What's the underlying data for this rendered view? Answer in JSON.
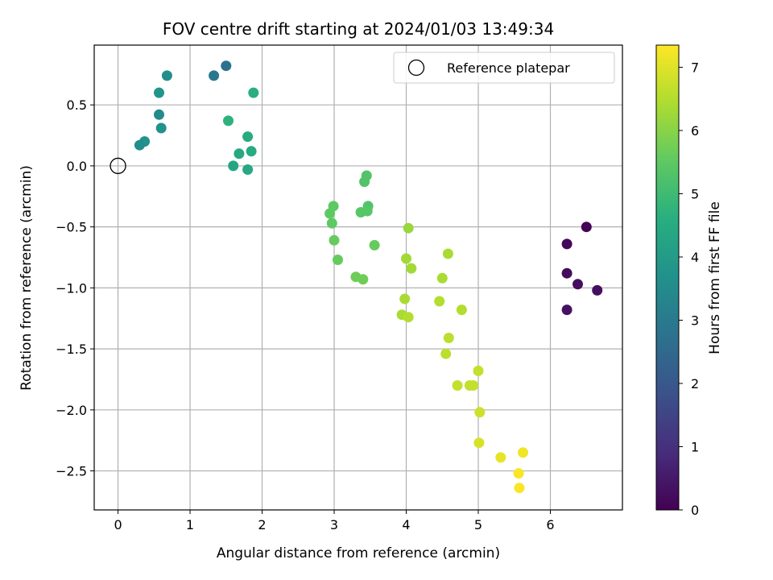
{
  "chart_data": {
    "type": "scatter",
    "title": "FOV centre drift starting at 2024/01/03 13:49:34",
    "xlabel": "Angular distance from reference (arcmin)",
    "ylabel": "Rotation from reference (arcmin)",
    "xlim": [
      -0.33,
      7.0
    ],
    "ylim": [
      -2.82,
      0.99
    ],
    "xticks": [
      0,
      1,
      2,
      3,
      4,
      5,
      6
    ],
    "yticks": [
      -2.5,
      -2.0,
      -1.5,
      -1.0,
      -0.5,
      0.0,
      0.5
    ],
    "xtick_labels": [
      "0",
      "1",
      "2",
      "3",
      "4",
      "5",
      "6"
    ],
    "ytick_labels": [
      "−2.5",
      "−2.0",
      "−1.5",
      "−1.0",
      "−0.5",
      "0.0",
      "0.5"
    ],
    "grid": true,
    "colormap": "viridis",
    "colorbar": {
      "label": "Hours from first FF file",
      "range": [
        0,
        7.35
      ],
      "ticks": [
        0,
        1,
        2,
        3,
        4,
        5,
        6,
        7
      ],
      "tick_labels": [
        "0",
        "1",
        "2",
        "3",
        "4",
        "5",
        "6",
        "7"
      ]
    },
    "legend": {
      "position": "top-right",
      "entry": "Reference platepar"
    },
    "reference_point": {
      "x": 0.0,
      "y": 0.0
    },
    "points": [
      {
        "x": 6.5,
        "y": -0.5,
        "t": 0.05
      },
      {
        "x": 6.23,
        "y": -0.64,
        "t": 0.15
      },
      {
        "x": 6.23,
        "y": -0.88,
        "t": 0.2
      },
      {
        "x": 6.38,
        "y": -0.97,
        "t": 0.25
      },
      {
        "x": 6.65,
        "y": -1.02,
        "t": 0.3
      },
      {
        "x": 6.23,
        "y": -1.18,
        "t": 0.35
      },
      {
        "x": 1.5,
        "y": 0.82,
        "t": 2.7
      },
      {
        "x": 1.33,
        "y": 0.74,
        "t": 2.9
      },
      {
        "x": 0.68,
        "y": 0.74,
        "t": 3.6
      },
      {
        "x": 0.57,
        "y": 0.6,
        "t": 3.8
      },
      {
        "x": 0.57,
        "y": 0.42,
        "t": 3.5
      },
      {
        "x": 0.6,
        "y": 0.31,
        "t": 3.7
      },
      {
        "x": 0.37,
        "y": 0.2,
        "t": 3.7
      },
      {
        "x": 0.3,
        "y": 0.17,
        "t": 3.6
      },
      {
        "x": 1.53,
        "y": 0.37,
        "t": 4.7
      },
      {
        "x": 1.88,
        "y": 0.6,
        "t": 4.6
      },
      {
        "x": 1.8,
        "y": 0.24,
        "t": 4.5
      },
      {
        "x": 1.68,
        "y": 0.1,
        "t": 4.4
      },
      {
        "x": 1.85,
        "y": 0.12,
        "t": 4.5
      },
      {
        "x": 1.6,
        "y": 0.0,
        "t": 4.3
      },
      {
        "x": 1.8,
        "y": -0.03,
        "t": 4.4
      },
      {
        "x": 3.45,
        "y": -0.08,
        "t": 5.3
      },
      {
        "x": 3.42,
        "y": -0.13,
        "t": 5.3
      },
      {
        "x": 3.47,
        "y": -0.33,
        "t": 5.3
      },
      {
        "x": 3.46,
        "y": -0.37,
        "t": 5.4
      },
      {
        "x": 3.37,
        "y": -0.38,
        "t": 5.4
      },
      {
        "x": 2.99,
        "y": -0.33,
        "t": 5.5
      },
      {
        "x": 2.94,
        "y": -0.39,
        "t": 5.5
      },
      {
        "x": 2.97,
        "y": -0.47,
        "t": 5.5
      },
      {
        "x": 3.0,
        "y": -0.61,
        "t": 5.6
      },
      {
        "x": 3.05,
        "y": -0.77,
        "t": 5.6
      },
      {
        "x": 3.56,
        "y": -0.65,
        "t": 5.6
      },
      {
        "x": 3.3,
        "y": -0.91,
        "t": 5.7
      },
      {
        "x": 3.4,
        "y": -0.93,
        "t": 5.7
      },
      {
        "x": 4.03,
        "y": -0.51,
        "t": 6.2
      },
      {
        "x": 4.0,
        "y": -0.76,
        "t": 6.3
      },
      {
        "x": 4.07,
        "y": -0.84,
        "t": 6.3
      },
      {
        "x": 4.58,
        "y": -0.72,
        "t": 6.4
      },
      {
        "x": 4.5,
        "y": -0.92,
        "t": 6.4
      },
      {
        "x": 3.98,
        "y": -1.09,
        "t": 6.4
      },
      {
        "x": 4.46,
        "y": -1.11,
        "t": 6.5
      },
      {
        "x": 4.77,
        "y": -1.18,
        "t": 6.5
      },
      {
        "x": 3.94,
        "y": -1.22,
        "t": 6.4
      },
      {
        "x": 4.03,
        "y": -1.24,
        "t": 6.5
      },
      {
        "x": 4.59,
        "y": -1.41,
        "t": 6.6
      },
      {
        "x": 4.55,
        "y": -1.54,
        "t": 6.6
      },
      {
        "x": 5.0,
        "y": -1.68,
        "t": 6.7
      },
      {
        "x": 4.71,
        "y": -1.8,
        "t": 6.7
      },
      {
        "x": 4.88,
        "y": -1.8,
        "t": 6.7
      },
      {
        "x": 4.93,
        "y": -1.8,
        "t": 6.7
      },
      {
        "x": 5.02,
        "y": -2.02,
        "t": 6.8
      },
      {
        "x": 5.01,
        "y": -2.27,
        "t": 6.9
      },
      {
        "x": 5.31,
        "y": -2.39,
        "t": 7.1
      },
      {
        "x": 5.62,
        "y": -2.35,
        "t": 7.2
      },
      {
        "x": 5.56,
        "y": -2.52,
        "t": 7.3
      },
      {
        "x": 5.57,
        "y": -2.64,
        "t": 7.3
      }
    ]
  }
}
